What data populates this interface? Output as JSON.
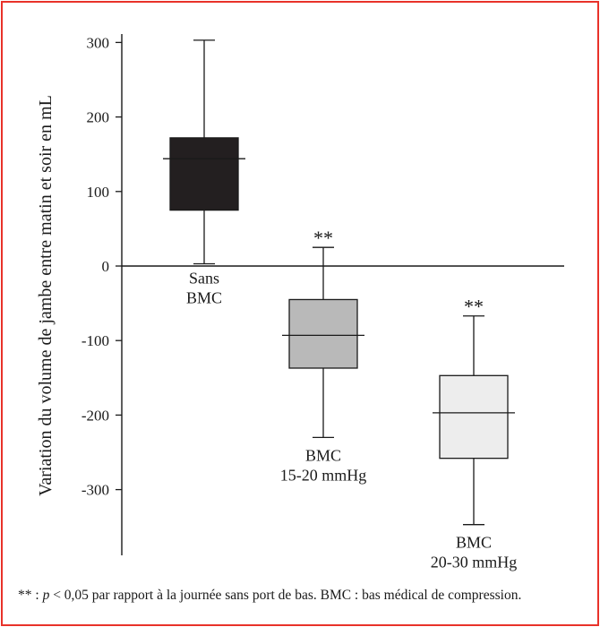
{
  "colors": {
    "frame_border": "#e8322a"
  },
  "chart_data": {
    "type": "boxplot",
    "ylabel": "Variation du volume de jambe entre matin et soir en mL",
    "ylim": [
      -385,
      315
    ],
    "yticks": [
      300,
      200,
      100,
      0,
      -100,
      -200,
      -300
    ],
    "ytick_labels": [
      "300",
      "200",
      "100",
      "0",
      "-100",
      "-200",
      "-300"
    ],
    "boxes": [
      {
        "label_lines": [
          "Sans",
          "BMC"
        ],
        "whisker_high": 303,
        "q3": 172,
        "median": 144,
        "q1": 75,
        "whisker_low": 3,
        "fill": "#231f20",
        "significance": ""
      },
      {
        "label_lines": [
          "BMC",
          "15-20 mmHg"
        ],
        "whisker_high": 25,
        "q3": -45,
        "median": -93,
        "q1": -137,
        "whisker_low": -230,
        "fill": "#b9b9b9",
        "significance": "**"
      },
      {
        "label_lines": [
          "BMC",
          "20-30 mmHg"
        ],
        "whisker_high": -67,
        "q3": -147,
        "median": -197,
        "q1": -258,
        "whisker_low": -347,
        "fill": "#ededed",
        "significance": "**"
      }
    ]
  },
  "footnote": {
    "stars": "** : ",
    "p": "p",
    "rest": " < 0,05 par rapport à la journée sans port de bas. BMC : bas médical de compression."
  }
}
